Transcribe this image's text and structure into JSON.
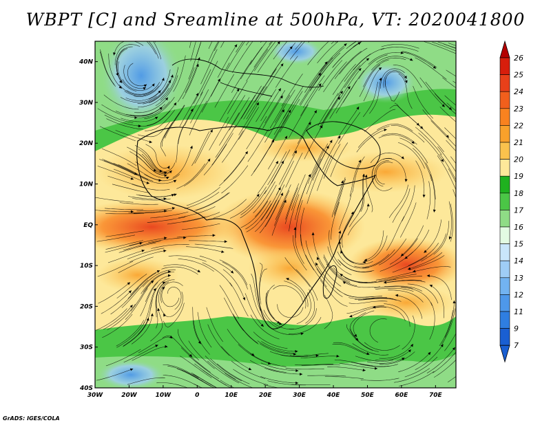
{
  "title": "WBPT [C] and Sreamline at 500hPa, VT: 2020041800",
  "credit": "GrADS: IGES/COLA",
  "map": {
    "lon_range": [
      -30,
      76
    ],
    "lat_range": [
      -40,
      45
    ],
    "lon_ticks": [
      {
        "value": -30,
        "label": "30W"
      },
      {
        "value": -20,
        "label": "20W"
      },
      {
        "value": -10,
        "label": "10W"
      },
      {
        "value": 0,
        "label": "0"
      },
      {
        "value": 10,
        "label": "10E"
      },
      {
        "value": 20,
        "label": "20E"
      },
      {
        "value": 30,
        "label": "30E"
      },
      {
        "value": 40,
        "label": "40E"
      },
      {
        "value": 50,
        "label": "50E"
      },
      {
        "value": 60,
        "label": "60E"
      },
      {
        "value": 70,
        "label": "70E"
      }
    ],
    "lat_ticks": [
      {
        "value": 40,
        "label": "40N"
      },
      {
        "value": 30,
        "label": "30N"
      },
      {
        "value": 20,
        "label": "20N"
      },
      {
        "value": 10,
        "label": "10N"
      },
      {
        "value": 0,
        "label": "EQ"
      },
      {
        "value": -10,
        "label": "10S"
      },
      {
        "value": -20,
        "label": "20S"
      },
      {
        "value": -30,
        "label": "30S"
      },
      {
        "value": -40,
        "label": "40S"
      }
    ]
  },
  "colorbar": {
    "levels": [
      {
        "label": "26",
        "color": "#b40000"
      },
      {
        "label": "25",
        "color": "#d71e0c"
      },
      {
        "label": "24",
        "color": "#e8401a"
      },
      {
        "label": "23",
        "color": "#f15f1c"
      },
      {
        "label": "22",
        "color": "#f9821f"
      },
      {
        "label": "21",
        "color": "#f9a12b"
      },
      {
        "label": "20",
        "color": "#fac24d"
      },
      {
        "label": "19",
        "color": "#fde89a"
      },
      {
        "label": "18",
        "color": "#1fb11f"
      },
      {
        "label": "17",
        "color": "#4bc646"
      },
      {
        "label": "16",
        "color": "#8fdc86"
      },
      {
        "label": "15",
        "color": "#e2fbe2"
      },
      {
        "label": "14",
        "color": "#c9e6fb"
      },
      {
        "label": "13",
        "color": "#9fcdf6"
      },
      {
        "label": "12",
        "color": "#72b3f1"
      },
      {
        "label": "11",
        "color": "#4e98ea"
      },
      {
        "label": "9",
        "color": "#2f7ee1"
      },
      {
        "label": "7",
        "color": "#1a5fd2"
      }
    ]
  }
}
